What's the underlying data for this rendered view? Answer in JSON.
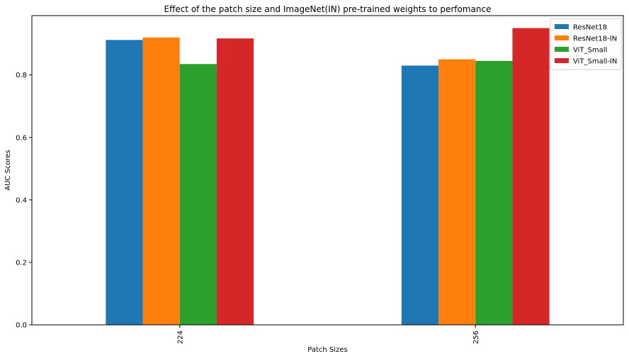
{
  "chart_data": {
    "type": "bar",
    "title": "Effect of the patch size and ImageNet(IN) pre-trained weights to perfomance",
    "xlabel": "Patch Sizes",
    "ylabel": "AUC Scores",
    "categories": [
      "224",
      "256"
    ],
    "ylim": [
      0,
      0.99
    ],
    "yticks": [
      0.0,
      0.2,
      0.4,
      0.6,
      0.8
    ],
    "ytick_labels": [
      "0.0",
      "0.2",
      "0.4",
      "0.6",
      "0.8"
    ],
    "grid": false,
    "legend_position": "top-right",
    "series": [
      {
        "name": "ResNet18",
        "color": "#1f77b4",
        "values": [
          0.912,
          0.83
        ]
      },
      {
        "name": "ResNet18-IN",
        "color": "#ff7f0e",
        "values": [
          0.92,
          0.85
        ]
      },
      {
        "name": "ViT_Small",
        "color": "#2ca02c",
        "values": [
          0.835,
          0.845
        ]
      },
      {
        "name": "ViT_Small-IN",
        "color": "#d62728",
        "values": [
          0.917,
          0.95
        ]
      }
    ]
  }
}
